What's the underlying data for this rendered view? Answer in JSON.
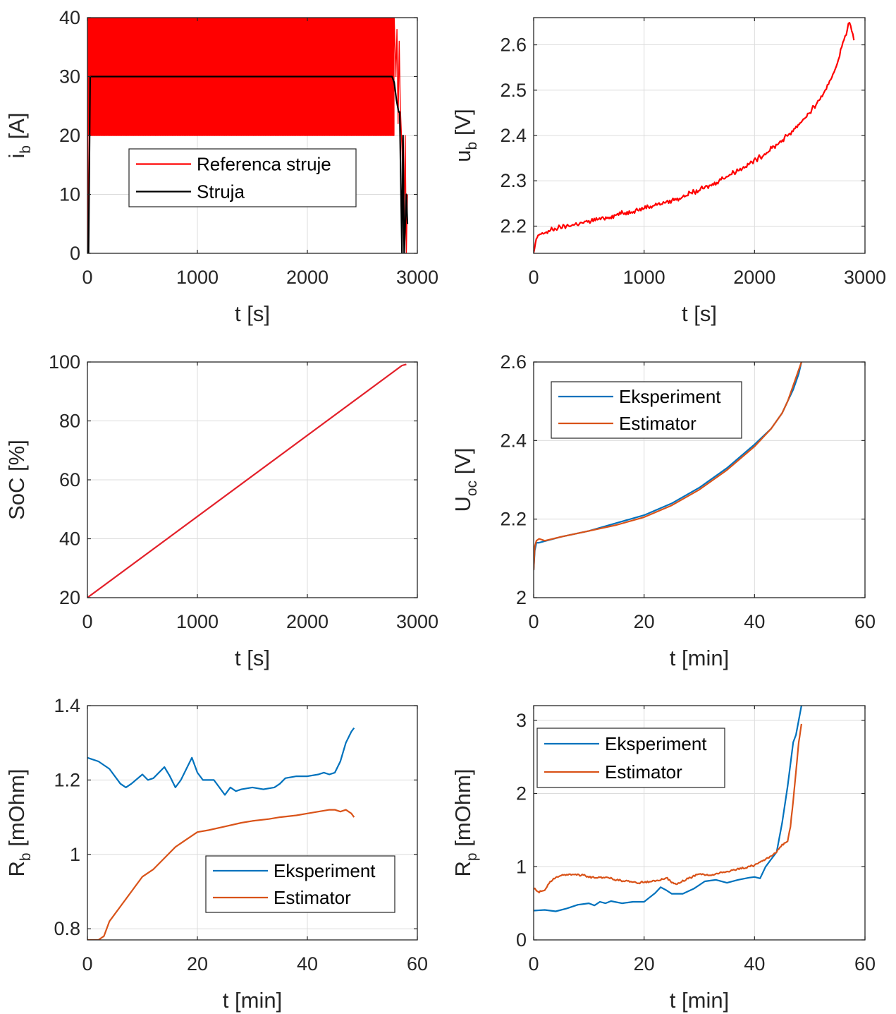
{
  "colors": {
    "red": "#ff0000",
    "black": "#000000",
    "blue": "#0072bd",
    "orange": "#d95319",
    "soc": "#e3202a"
  },
  "chart_data": [
    {
      "id": "p1",
      "type": "line",
      "xlabel": "t [s]",
      "ylabel_main": "i",
      "ylabel_sub": "b",
      "ylabel_tail": " [A]",
      "xlim": [
        0,
        3000
      ],
      "ylim": [
        0,
        40
      ],
      "xticks": [
        "0",
        "1000",
        "2000",
        "3000"
      ],
      "yticks": [
        "0",
        "10",
        "20",
        "30",
        "40"
      ],
      "grid": true,
      "legend_position": "middle",
      "series": [
        {
          "name": "Referenca struje",
          "color": "#ff0000",
          "kind": "pulse",
          "pulse": {
            "t_start": 5,
            "t_end": 2790,
            "high": 40,
            "low": 20,
            "period_s": 11
          },
          "x": [
            2790,
            2805,
            2815,
            2825,
            2835,
            2845,
            2860,
            2870,
            2880,
            2890,
            2900,
            2910
          ],
          "y": [
            40,
            30,
            38,
            22,
            36,
            25,
            18,
            12,
            5,
            20,
            0,
            10
          ]
        },
        {
          "name": "Struja",
          "color": "#000000",
          "x": [
            0,
            10,
            25,
            40,
            2000,
            2770,
            2790,
            2810,
            2830,
            2840,
            2860,
            2870,
            2880,
            2900,
            2910
          ],
          "y": [
            0,
            0,
            30,
            30,
            30,
            30,
            29,
            26,
            24,
            24,
            0,
            20,
            0,
            10,
            5
          ]
        }
      ]
    },
    {
      "id": "p2",
      "type": "line",
      "xlabel": "t [s]",
      "ylabel_main": "u",
      "ylabel_sub": "b",
      "ylabel_tail": " [V]",
      "xlim": [
        0,
        3000
      ],
      "ylim": [
        2.14,
        2.66
      ],
      "xticks": [
        "0",
        "1000",
        "2000",
        "3000"
      ],
      "yticks": [
        "2.2",
        "2.3",
        "2.4",
        "2.5",
        "2.6"
      ],
      "ytick_values": [
        2.2,
        2.3,
        2.4,
        2.5,
        2.6
      ],
      "grid": true,
      "series": [
        {
          "name": "",
          "color": "#ff0000",
          "noise": 0.012,
          "x": [
            0,
            15,
            40,
            200,
            500,
            1000,
            1300,
            1600,
            1900,
            2100,
            2300,
            2500,
            2650,
            2750,
            2820,
            2860,
            2880,
            2900
          ],
          "y": [
            2.14,
            2.16,
            2.18,
            2.195,
            2.21,
            2.24,
            2.26,
            2.29,
            2.33,
            2.36,
            2.4,
            2.45,
            2.5,
            2.56,
            2.62,
            2.65,
            2.63,
            2.61
          ]
        }
      ]
    },
    {
      "id": "p3",
      "type": "line",
      "xlabel": "t [s]",
      "ylabel_main": "SoC [%]",
      "ylabel_sub": "",
      "ylabel_tail": "",
      "xlim": [
        0,
        3000
      ],
      "ylim": [
        20,
        100
      ],
      "xticks": [
        "0",
        "1000",
        "2000",
        "3000"
      ],
      "yticks": [
        "20",
        "40",
        "60",
        "80",
        "100"
      ],
      "grid": true,
      "series": [
        {
          "name": "",
          "color": "#e3202a",
          "x": [
            0,
            2860,
            2900
          ],
          "y": [
            20,
            98.8,
            99.2
          ]
        }
      ]
    },
    {
      "id": "p4",
      "type": "line",
      "xlabel": "t [min]",
      "ylabel_main": "U",
      "ylabel_sub": "oc",
      "ylabel_tail": " [V]",
      "xlim": [
        0,
        60
      ],
      "ylim": [
        2,
        2.6
      ],
      "xticks": [
        "0",
        "20",
        "40",
        "60"
      ],
      "yticks": [
        "2",
        "2.2",
        "2.4",
        "2.6"
      ],
      "grid": true,
      "legend_position": "top-left",
      "series": [
        {
          "name": "Eksperiment",
          "color": "#0072bd",
          "x": [
            0,
            0.2,
            0.5,
            1,
            5,
            10,
            15,
            20,
            25,
            30,
            35,
            40,
            43,
            45,
            46,
            47,
            48,
            48.5
          ],
          "y": [
            2.07,
            2.12,
            2.14,
            2.14,
            2.155,
            2.17,
            2.19,
            2.21,
            2.24,
            2.28,
            2.33,
            2.39,
            2.43,
            2.47,
            2.5,
            2.53,
            2.57,
            2.6
          ]
        },
        {
          "name": "Estimator",
          "color": "#d95319",
          "x": [
            0,
            0.2,
            0.5,
            1,
            2,
            5,
            10,
            15,
            20,
            25,
            30,
            35,
            40,
            43,
            45,
            46,
            47,
            48,
            48.5
          ],
          "y": [
            2.07,
            2.13,
            2.145,
            2.15,
            2.145,
            2.155,
            2.17,
            2.185,
            2.205,
            2.235,
            2.275,
            2.325,
            2.385,
            2.43,
            2.47,
            2.5,
            2.54,
            2.58,
            2.6
          ]
        }
      ]
    },
    {
      "id": "p5",
      "type": "line",
      "xlabel": "t [min]",
      "ylabel_main": "R",
      "ylabel_sub": "b",
      "ylabel_tail": " [mOhm]",
      "xlim": [
        0,
        60
      ],
      "ylim": [
        0.77,
        1.4
      ],
      "xticks": [
        "0",
        "20",
        "40",
        "60"
      ],
      "yticks": [
        "0.8",
        "1",
        "1.2",
        "1.4"
      ],
      "ytick_values": [
        0.8,
        1.0,
        1.2,
        1.4
      ],
      "grid": true,
      "legend_position": "lower-middle",
      "series": [
        {
          "name": "Eksperiment",
          "color": "#0072bd",
          "x": [
            0,
            2,
            4,
            6,
            7,
            8,
            10,
            11,
            12,
            14,
            15,
            16,
            17,
            19,
            20,
            21,
            23,
            24,
            25,
            26,
            27,
            28,
            30,
            32,
            34,
            35,
            36,
            38,
            40,
            42,
            43,
            44,
            45,
            46,
            47,
            48,
            48.5
          ],
          "y": [
            1.26,
            1.25,
            1.23,
            1.19,
            1.18,
            1.19,
            1.215,
            1.2,
            1.205,
            1.235,
            1.21,
            1.18,
            1.2,
            1.26,
            1.22,
            1.2,
            1.2,
            1.18,
            1.16,
            1.18,
            1.17,
            1.175,
            1.18,
            1.175,
            1.18,
            1.19,
            1.205,
            1.21,
            1.21,
            1.215,
            1.22,
            1.215,
            1.22,
            1.25,
            1.3,
            1.33,
            1.34
          ]
        },
        {
          "name": "Estimator",
          "color": "#d95319",
          "x": [
            0,
            2,
            3,
            4,
            6,
            8,
            10,
            12,
            14,
            16,
            18,
            20,
            22,
            25,
            28,
            30,
            33,
            35,
            38,
            40,
            42,
            44,
            45,
            46,
            47,
            48,
            48.5
          ],
          "y": [
            0.77,
            0.77,
            0.78,
            0.82,
            0.86,
            0.9,
            0.94,
            0.96,
            0.99,
            1.02,
            1.04,
            1.06,
            1.065,
            1.075,
            1.085,
            1.09,
            1.095,
            1.1,
            1.105,
            1.11,
            1.115,
            1.12,
            1.12,
            1.115,
            1.12,
            1.11,
            1.1
          ]
        }
      ]
    },
    {
      "id": "p6",
      "type": "line",
      "xlabel": "t [min]",
      "ylabel_main": "R",
      "ylabel_sub": "p",
      "ylabel_tail": " [mOhm]",
      "xlim": [
        0,
        60
      ],
      "ylim": [
        0,
        3.2
      ],
      "xticks": [
        "0",
        "20",
        "40",
        "60"
      ],
      "yticks": [
        "0",
        "1",
        "2",
        "3"
      ],
      "grid": true,
      "legend_position": "top-left",
      "series": [
        {
          "name": "Eksperiment",
          "color": "#0072bd",
          "x": [
            0,
            2,
            4,
            6,
            8,
            10,
            11,
            12,
            13,
            14,
            16,
            18,
            20,
            21,
            22,
            23,
            24,
            25,
            27,
            29,
            31,
            33,
            35,
            37,
            39,
            40,
            41,
            42,
            43,
            44,
            45,
            46,
            47,
            47.5,
            48,
            48.5
          ],
          "y": [
            0.4,
            0.41,
            0.39,
            0.43,
            0.48,
            0.5,
            0.47,
            0.52,
            0.5,
            0.53,
            0.5,
            0.52,
            0.52,
            0.58,
            0.64,
            0.72,
            0.68,
            0.63,
            0.63,
            0.7,
            0.8,
            0.82,
            0.78,
            0.82,
            0.85,
            0.86,
            0.84,
            1.0,
            1.1,
            1.2,
            1.6,
            2.1,
            2.7,
            2.8,
            3.0,
            3.2
          ]
        },
        {
          "name": "Estimator",
          "color": "#d95319",
          "noise": 0.03,
          "x": [
            0,
            1,
            2,
            3,
            4,
            5,
            7,
            9,
            11,
            13,
            15,
            17,
            19,
            21,
            23,
            24,
            25,
            26,
            28,
            30,
            32,
            34,
            36,
            38,
            40,
            41,
            42,
            43,
            44,
            45,
            46,
            46.5,
            47,
            47.5,
            48,
            48.5
          ],
          "y": [
            0.7,
            0.65,
            0.68,
            0.8,
            0.85,
            0.88,
            0.9,
            0.88,
            0.85,
            0.86,
            0.82,
            0.8,
            0.78,
            0.8,
            0.82,
            0.85,
            0.78,
            0.76,
            0.84,
            0.9,
            0.88,
            0.92,
            0.95,
            0.98,
            1.02,
            1.06,
            1.1,
            1.15,
            1.2,
            1.3,
            1.35,
            1.55,
            1.9,
            2.3,
            2.7,
            2.95
          ]
        }
      ]
    }
  ]
}
